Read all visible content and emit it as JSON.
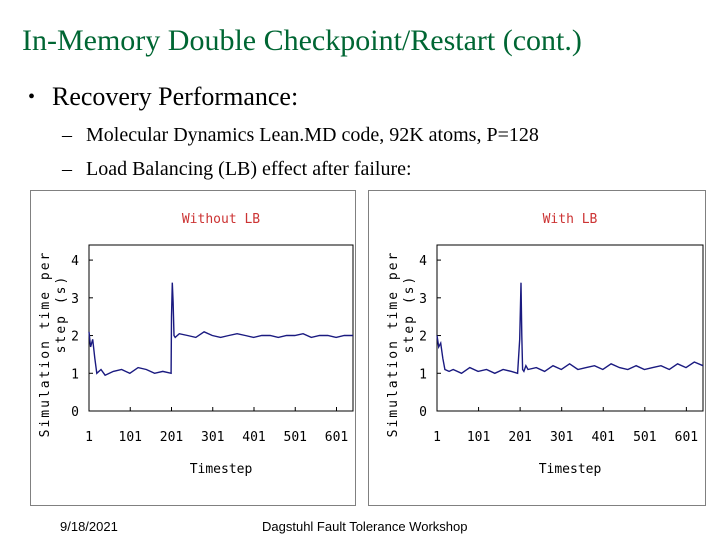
{
  "slide": {
    "title": "In-Memory Double Checkpoint/Restart (cont.)",
    "bullet": "Recovery Performance:",
    "sub_items": [
      "Molecular Dynamics Lean.MD code, 92K atoms, P=128",
      "Load Balancing (LB) effect after failure:"
    ],
    "footer_date": "9/18/2021",
    "footer_text": "Dagstuhl Fault Tolerance Workshop"
  },
  "colors": {
    "title": "#006633",
    "line": "#1a1a80",
    "chart_title": "#cc3333"
  },
  "chart_data": [
    {
      "type": "line",
      "title": "Without LB",
      "xlabel": "Timestep",
      "ylabel": "Simulation time per step (s)",
      "xticks": [
        "1",
        "101",
        "201",
        "301",
        "401",
        "501",
        "601"
      ],
      "yticks": [
        "0",
        "1",
        "2",
        "3",
        "4"
      ],
      "xlim": [
        1,
        641
      ],
      "ylim": [
        0,
        4.4
      ],
      "series": [
        {
          "x": [
            1,
            5,
            10,
            15,
            20,
            30,
            40,
            60,
            80,
            100,
            120,
            140,
            160,
            180,
            200,
            201,
            203,
            205,
            207,
            210,
            215,
            220,
            240,
            260,
            280,
            300,
            320,
            340,
            360,
            380,
            400,
            420,
            440,
            460,
            480,
            500,
            520,
            540,
            560,
            580,
            600,
            620,
            641
          ],
          "y": [
            2.1,
            1.7,
            1.9,
            1.4,
            1.0,
            1.1,
            0.95,
            1.05,
            1.1,
            1.0,
            1.15,
            1.1,
            1.0,
            1.05,
            1.0,
            2.5,
            3.4,
            2.9,
            2.0,
            1.95,
            2.0,
            2.05,
            2.0,
            1.95,
            2.1,
            2.0,
            1.95,
            2.0,
            2.05,
            2.0,
            1.95,
            2.0,
            2.0,
            1.95,
            2.0,
            2.0,
            2.05,
            1.95,
            2.0,
            2.0,
            1.95,
            2.0,
            2.0
          ]
        }
      ]
    },
    {
      "type": "line",
      "title": "With LB",
      "xlabel": "Timestep",
      "ylabel": "Simulation time per step (s)",
      "xticks": [
        "1",
        "101",
        "201",
        "301",
        "401",
        "501",
        "601"
      ],
      "yticks": [
        "0",
        "1",
        "2",
        "3",
        "4"
      ],
      "xlim": [
        1,
        641
      ],
      "ylim": [
        0,
        4.4
      ],
      "series": [
        {
          "x": [
            1,
            5,
            10,
            15,
            20,
            30,
            40,
            60,
            80,
            100,
            120,
            140,
            160,
            180,
            195,
            200,
            203,
            205,
            207,
            210,
            215,
            220,
            240,
            260,
            280,
            300,
            320,
            340,
            360,
            380,
            400,
            420,
            440,
            460,
            480,
            500,
            520,
            540,
            560,
            580,
            600,
            620,
            641
          ],
          "y": [
            2.0,
            1.7,
            1.8,
            1.4,
            1.1,
            1.05,
            1.1,
            1.0,
            1.15,
            1.05,
            1.1,
            1.0,
            1.1,
            1.05,
            1.0,
            1.9,
            3.4,
            2.0,
            1.1,
            1.05,
            1.2,
            1.1,
            1.15,
            1.05,
            1.2,
            1.1,
            1.25,
            1.1,
            1.15,
            1.2,
            1.1,
            1.25,
            1.15,
            1.1,
            1.2,
            1.1,
            1.15,
            1.2,
            1.1,
            1.25,
            1.15,
            1.3,
            1.2
          ]
        }
      ]
    }
  ]
}
